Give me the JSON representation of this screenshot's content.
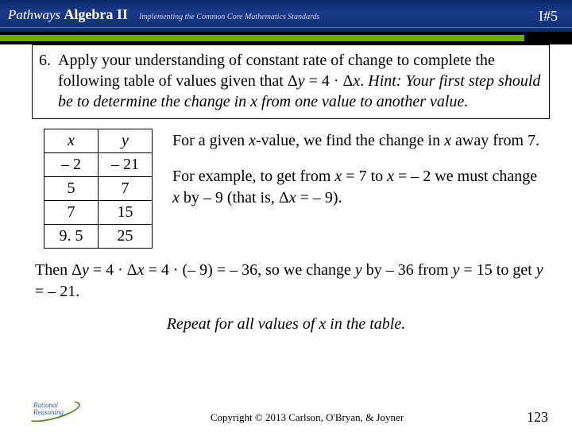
{
  "header": {
    "brand_prefix": "Pathways",
    "brand_main": "Algebra II",
    "subtitle": "Implementing the Common Core Mathematics Standards",
    "page_code": "I#5"
  },
  "question": {
    "number": "6.",
    "line1": "Apply your understanding of constant rate of change to complete the following table of values given that",
    "formula": "Δy = 4 · Δx.",
    "hint": "Hint: Your first step should be to determine the change in x from one value to another value."
  },
  "table": {
    "headers": {
      "x": "x",
      "y": "y"
    },
    "rows": [
      {
        "x": "– 2",
        "y": "– 21"
      },
      {
        "x": "5",
        "y": "7"
      },
      {
        "x": "7",
        "y": "15"
      },
      {
        "x": "9. 5",
        "y": "25"
      }
    ]
  },
  "explain": {
    "p1a": "For a given ",
    "p1x": "x",
    "p1b": "-value, we find the change in ",
    "p1c": " away from 7.",
    "p2a": "For example, to get from ",
    "p2x1": "x",
    "p2b": " = 7 to ",
    "p2x2": "x",
    "p2c": " = – 2 we must change ",
    "p2x3": "x",
    "p2d": " by – 9 (that is, Δ",
    "p2x4": "x",
    "p2e": " = – 9)."
  },
  "then": {
    "a": "Then Δ",
    "y1": "y",
    "b": " = 4 · Δ",
    "x1": "x",
    "c": " = 4 · (– 9) = – 36, so we change ",
    "y2": "y",
    "d": " by – 36 from ",
    "y3": "y",
    "e": " = 15 to get ",
    "y4": "y",
    "f": " = – 21."
  },
  "repeat": "Repeat for all values of x in the table.",
  "footer": {
    "logo_line1": "Rational",
    "logo_line2": "Reasoning",
    "copyright": "Copyright © 2013 Carlson, O'Bryan, & Joyner",
    "page_num": "123"
  }
}
